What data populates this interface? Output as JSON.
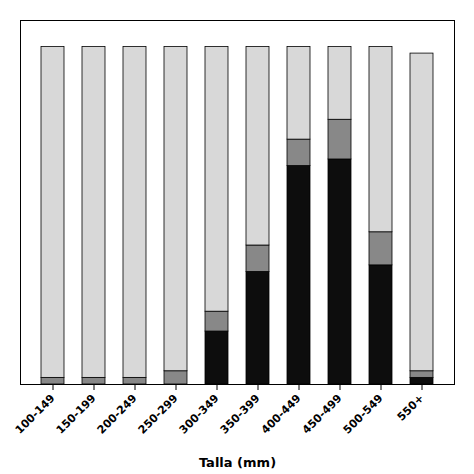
{
  "chart_data": {
    "type": "bar",
    "stacked": true,
    "categories": [
      "100-149",
      "150-199",
      "200-249",
      "250-299",
      "300-349",
      "350-399",
      "400-449",
      "450-499",
      "500-549",
      "550+"
    ],
    "series": [
      {
        "color": "#0d0d0d",
        "values": [
          0,
          0,
          0,
          0,
          8,
          17,
          33,
          34,
          18,
          1
        ]
      },
      {
        "color": "#888888",
        "values": [
          1,
          1,
          1,
          2,
          3,
          4,
          4,
          6,
          5,
          1
        ]
      },
      {
        "color": "#d8d8d8",
        "values": [
          50,
          50,
          50,
          49,
          40,
          30,
          14,
          11,
          28,
          48
        ]
      }
    ],
    "xlabel": "Talla (mm)",
    "ylim": [
      0,
      55
    ],
    "tick_labels": "x"
  }
}
